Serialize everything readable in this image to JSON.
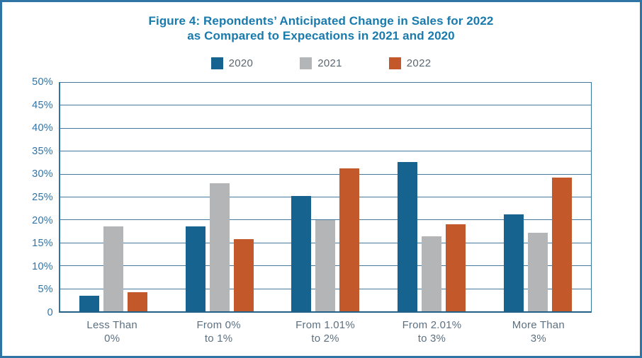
{
  "figure": {
    "title_line1": "Figure 4: Repondents’ Anticipated Change in Sales for 2022",
    "title_line2": "as Compared to Expecations in 2021 and 2020"
  },
  "colors": {
    "accent_blue": "#176390",
    "accent_gray": "#B3B5B7",
    "accent_orange": "#C3592B",
    "border_blue": "#2E75A6",
    "title_blue": "#187AAD",
    "tick_blue": "#2F74A6",
    "label_slate": "#5C7080"
  },
  "chart_data": {
    "type": "bar",
    "title": "Figure 4: Repondents’ Anticipated Change in Sales for 2022 as Compared to Expecations in 2021 and 2020",
    "categories": [
      "Less Than 0%",
      "From 0% to 1%",
      "From 1.01% to 2%",
      "From 2.01% to 3%",
      "More Than 3%"
    ],
    "category_lines": [
      [
        "Less Than",
        "0%"
      ],
      [
        "From 0%",
        "to 1%"
      ],
      [
        "From 1.01%",
        "to 2%"
      ],
      [
        "From 2.01%",
        "to 3%"
      ],
      [
        "More Than",
        "3%"
      ]
    ],
    "series": [
      {
        "name": "2020",
        "color": "#176390",
        "values": [
          3.4,
          18.5,
          25.2,
          32.6,
          21.1
        ]
      },
      {
        "name": "2021",
        "color": "#B3B5B7",
        "values": [
          18.5,
          27.9,
          19.9,
          16.4,
          17.1
        ]
      },
      {
        "name": "2022",
        "color": "#C3592B",
        "values": [
          4.1,
          15.7,
          31.2,
          19.0,
          29.2
        ]
      }
    ],
    "xlabel": "",
    "ylabel": "",
    "ylim": [
      0,
      50
    ],
    "yticks": [
      {
        "value": 50,
        "label": "50%"
      },
      {
        "value": 45,
        "label": "45%"
      },
      {
        "value": 40,
        "label": "40%"
      },
      {
        "value": 35,
        "label": "35%"
      },
      {
        "value": 30,
        "label": "30%"
      },
      {
        "value": 25,
        "label": "25%"
      },
      {
        "value": 20,
        "label": "20%"
      },
      {
        "value": 15,
        "label": "15%"
      },
      {
        "value": 10,
        "label": "10%"
      },
      {
        "value": 5,
        "label": "5%"
      },
      {
        "value": 0,
        "label": "0"
      }
    ],
    "grid": true,
    "legend_position": "top"
  }
}
